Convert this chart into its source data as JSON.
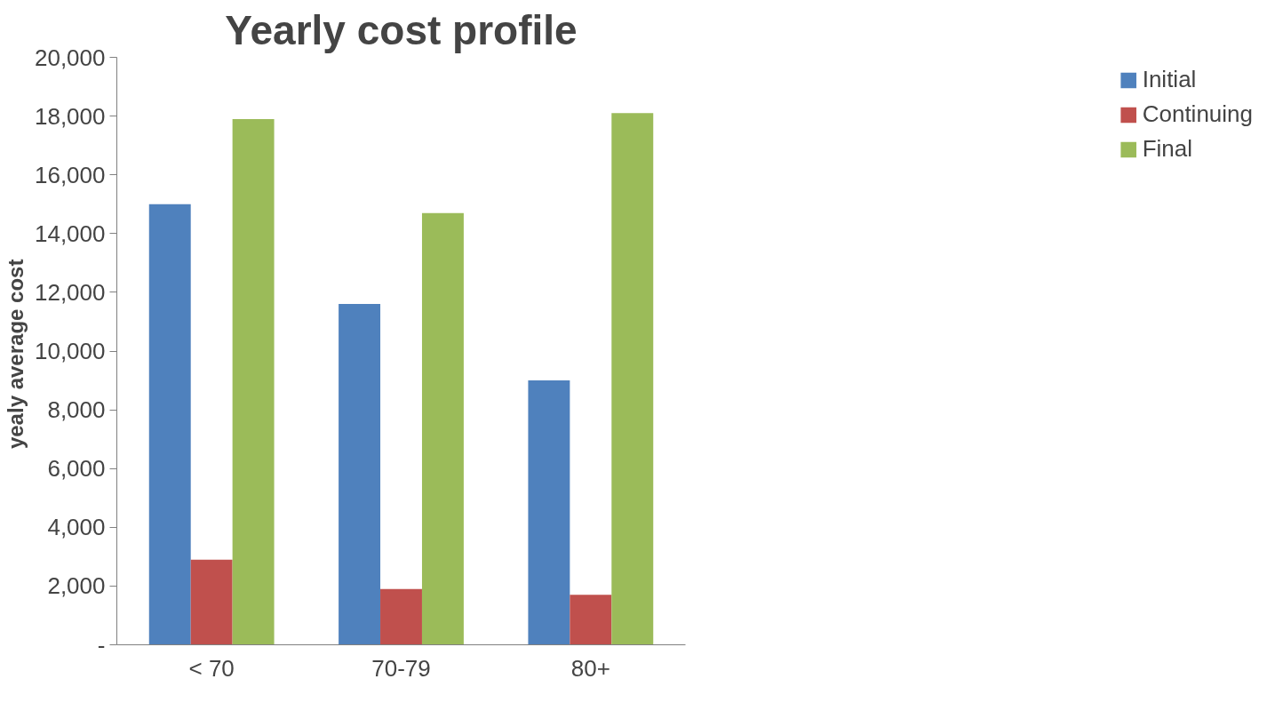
{
  "chart_data": {
    "type": "bar",
    "title": "Yearly cost profile",
    "ylabel": "yealy average  cost",
    "categories": [
      "< 70",
      "70-79",
      "80+"
    ],
    "series": [
      {
        "name": "Initial",
        "color": "#4f81bd",
        "values": [
          15000,
          11600,
          9000
        ]
      },
      {
        "name": "Continuing",
        "color": "#c0504d",
        "values": [
          2900,
          1900,
          1700
        ]
      },
      {
        "name": "Final",
        "color": "#9bbb59",
        "values": [
          17900,
          14700,
          18100
        ]
      }
    ],
    "ylim": [
      0,
      20000
    ],
    "yticks": [
      {
        "value": 0,
        "label": "-"
      },
      {
        "value": 2000,
        "label": "2,000"
      },
      {
        "value": 4000,
        "label": "4,000"
      },
      {
        "value": 6000,
        "label": "6,000"
      },
      {
        "value": 8000,
        "label": "8,000"
      },
      {
        "value": 10000,
        "label": "10,000"
      },
      {
        "value": 12000,
        "label": "12,000"
      },
      {
        "value": 14000,
        "label": "14,000"
      },
      {
        "value": 16000,
        "label": "16,000"
      },
      {
        "value": 18000,
        "label": "18,000"
      },
      {
        "value": 20000,
        "label": "20,000"
      }
    ],
    "grid": false,
    "legend": "top right"
  }
}
